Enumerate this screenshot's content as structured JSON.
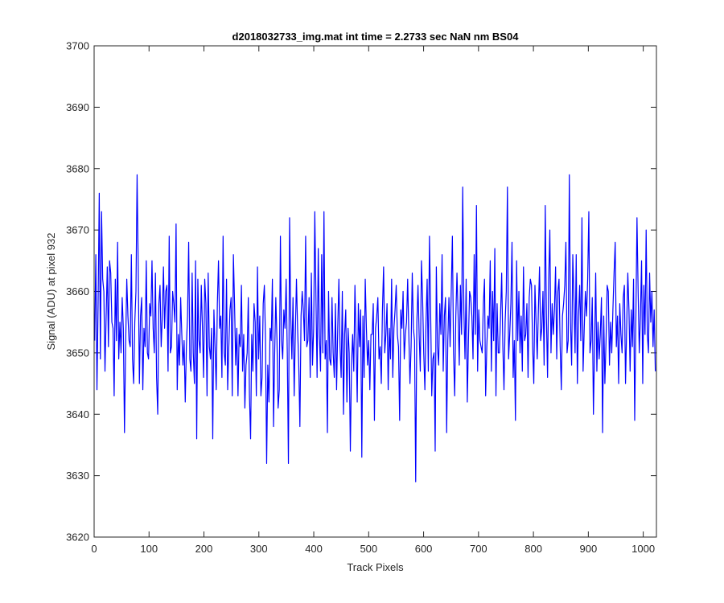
{
  "chart_data": {
    "type": "line",
    "title": "d2018032733_img.mat int time = 2.2733 sec  NaN nm BS04",
    "xlabel": "Track Pixels",
    "ylabel": "Signal (ADU) at pixel 932",
    "xlim": [
      0,
      1024
    ],
    "ylim": [
      3620,
      3700
    ],
    "xticks": [
      "0",
      "100",
      "200",
      "300",
      "400",
      "500",
      "600",
      "700",
      "800",
      "900",
      "1000"
    ],
    "yticks": [
      "3620",
      "3630",
      "3640",
      "3650",
      "3660",
      "3670",
      "3680",
      "3690",
      "3700"
    ],
    "grid": false,
    "box": true,
    "series": [
      {
        "name": "",
        "color": "#0000ff",
        "x_start": 1,
        "x_step": 1,
        "values": [
          3652,
          3666,
          3644,
          3658,
          3676,
          3649,
          3673,
          3662,
          3660,
          3647,
          3656,
          3664,
          3651,
          3665,
          3663,
          3655,
          3654,
          3643,
          3662,
          3652,
          3668,
          3649,
          3655,
          3650,
          3659,
          3654,
          3637,
          3651,
          3662,
          3656,
          3652,
          3651,
          3666,
          3649,
          3645,
          3655,
          3660,
          3679,
          3664,
          3645,
          3656,
          3659,
          3644,
          3654,
          3651,
          3665,
          3650,
          3649,
          3658,
          3656,
          3665,
          3654,
          3650,
          3663,
          3646,
          3640,
          3658,
          3661,
          3651,
          3656,
          3664,
          3654,
          3660,
          3661,
          3647,
          3669,
          3650,
          3651,
          3660,
          3658,
          3655,
          3671,
          3644,
          3653,
          3648,
          3659,
          3653,
          3648,
          3652,
          3642,
          3651,
          3656,
          3668,
          3649,
          3647,
          3663,
          3650,
          3645,
          3665,
          3636,
          3662,
          3652,
          3650,
          3661,
          3654,
          3646,
          3662,
          3658,
          3643,
          3663,
          3651,
          3649,
          3654,
          3636,
          3657,
          3651,
          3644,
          3658,
          3665,
          3654,
          3656,
          3646,
          3669,
          3650,
          3648,
          3662,
          3644,
          3651,
          3657,
          3659,
          3643,
          3666,
          3658,
          3648,
          3654,
          3643,
          3653,
          3651,
          3661,
          3647,
          3653,
          3641,
          3648,
          3650,
          3659,
          3643,
          3636,
          3653,
          3647,
          3658,
          3655,
          3643,
          3664,
          3649,
          3656,
          3643,
          3646,
          3658,
          3661,
          3652,
          3632,
          3648,
          3642,
          3654,
          3652,
          3662,
          3638,
          3650,
          3659,
          3652,
          3641,
          3644,
          3669,
          3652,
          3649,
          3657,
          3654,
          3662,
          3650,
          3632,
          3672,
          3656,
          3649,
          3659,
          3643,
          3653,
          3662,
          3654,
          3648,
          3638,
          3656,
          3660,
          3657,
          3652,
          3669,
          3651,
          3652,
          3659,
          3646,
          3663,
          3648,
          3654,
          3673,
          3659,
          3646,
          3667,
          3653,
          3647,
          3666,
          3650,
          3673,
          3649,
          3652,
          3637,
          3660,
          3649,
          3648,
          3659,
          3650,
          3646,
          3658,
          3644,
          3654,
          3662,
          3651,
          3646,
          3660,
          3640,
          3653,
          3657,
          3642,
          3654,
          3650,
          3634,
          3648,
          3653,
          3647,
          3661,
          3652,
          3642,
          3658,
          3651,
          3657,
          3633,
          3656,
          3646,
          3662,
          3654,
          3648,
          3652,
          3644,
          3653,
          3653,
          3658,
          3639,
          3654,
          3656,
          3659,
          3649,
          3651,
          3645,
          3657,
          3664,
          3650,
          3653,
          3658,
          3644,
          3654,
          3649,
          3662,
          3646,
          3654,
          3657,
          3661,
          3653,
          3651,
          3639,
          3657,
          3654,
          3660,
          3649,
          3653,
          3655,
          3662,
          3653,
          3645,
          3651,
          3663,
          3654,
          3652,
          3629,
          3655,
          3661,
          3653,
          3647,
          3665,
          3659,
          3650,
          3644,
          3655,
          3662,
          3647,
          3669,
          3657,
          3643,
          3649,
          3650,
          3634,
          3664,
          3651,
          3648,
          3658,
          3653,
          3666,
          3647,
          3656,
          3659,
          3637,
          3652,
          3659,
          3651,
          3660,
          3669,
          3650,
          3643,
          3656,
          3663,
          3656,
          3648,
          3661,
          3653,
          3677,
          3657,
          3649,
          3662,
          3642,
          3652,
          3660,
          3659,
          3656,
          3649,
          3666,
          3653,
          3674,
          3647,
          3657,
          3652,
          3651,
          3650,
          3658,
          3662,
          3643,
          3651,
          3656,
          3654,
          3665,
          3647,
          3660,
          3652,
          3667,
          3643,
          3658,
          3650,
          3650,
          3656,
          3663,
          3651,
          3644,
          3655,
          3660,
          3677,
          3649,
          3653,
          3658,
          3668,
          3646,
          3652,
          3639,
          3665,
          3652,
          3660,
          3650,
          3656,
          3647,
          3664,
          3652,
          3653,
          3658,
          3646,
          3659,
          3662,
          3661,
          3651,
          3645,
          3661,
          3655,
          3649,
          3657,
          3664,
          3652,
          3654,
          3660,
          3648,
          3674,
          3656,
          3646,
          3662,
          3670,
          3650,
          3658,
          3653,
          3657,
          3664,
          3649,
          3660,
          3662,
          3651,
          3644,
          3656,
          3658,
          3661,
          3668,
          3650,
          3652,
          3679,
          3655,
          3648,
          3666,
          3659,
          3650,
          3666,
          3645,
          3656,
          3661,
          3652,
          3672,
          3647,
          3654,
          3660,
          3656,
          3662,
          3673,
          3650,
          3652,
          3659,
          3640,
          3651,
          3663,
          3647,
          3655,
          3649,
          3653,
          3659,
          3637,
          3656,
          3645,
          3652,
          3661,
          3660,
          3648,
          3655,
          3650,
          3657,
          3663,
          3668,
          3651,
          3656,
          3645,
          3658,
          3653,
          3650,
          3659,
          3661,
          3645,
          3654,
          3663,
          3657,
          3647,
          3657,
          3651,
          3662,
          3639,
          3655,
          3672,
          3660,
          3650,
          3656,
          3665,
          3645,
          3661,
          3653,
          3670,
          3653,
          3650,
          3663,
          3655,
          3660,
          3651,
          3657,
          3647
        ]
      }
    ]
  }
}
